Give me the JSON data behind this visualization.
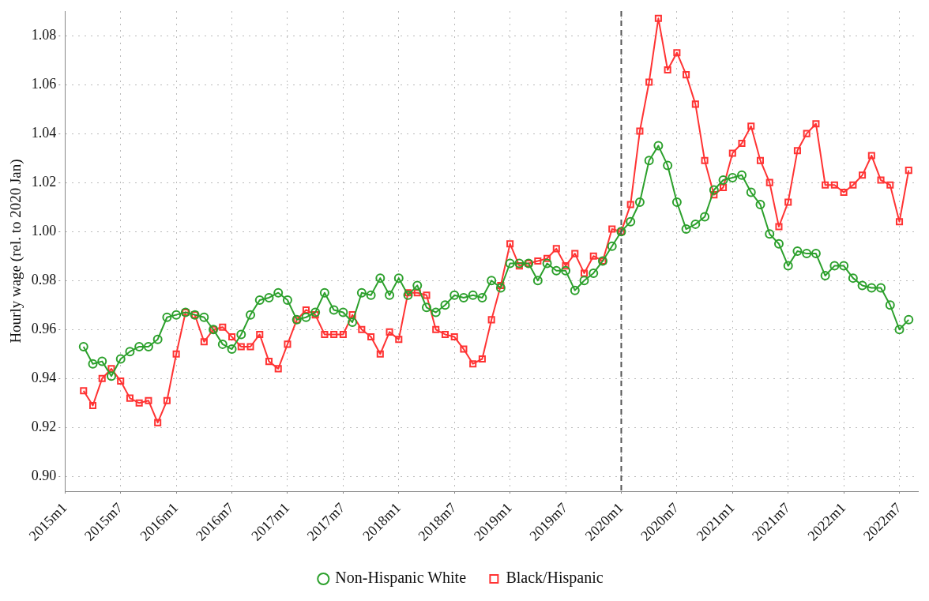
{
  "chart_data": {
    "type": "line",
    "ylabel": "Hourly wage (rel. to 2020 Jan)",
    "x": [
      "2015-03",
      "2015-04",
      "2015-05",
      "2015-06",
      "2015-07",
      "2015-08",
      "2015-09",
      "2015-10",
      "2015-11",
      "2015-12",
      "2016-01",
      "2016-02",
      "2016-03",
      "2016-04",
      "2016-05",
      "2016-06",
      "2016-07",
      "2016-08",
      "2016-09",
      "2016-10",
      "2016-11",
      "2016-12",
      "2017-01",
      "2017-02",
      "2017-03",
      "2017-04",
      "2017-05",
      "2017-06",
      "2017-07",
      "2017-08",
      "2017-09",
      "2017-10",
      "2017-11",
      "2017-12",
      "2018-01",
      "2018-02",
      "2018-03",
      "2018-04",
      "2018-05",
      "2018-06",
      "2018-07",
      "2018-08",
      "2018-09",
      "2018-10",
      "2018-11",
      "2018-12",
      "2019-01",
      "2019-02",
      "2019-03",
      "2019-04",
      "2019-05",
      "2019-06",
      "2019-07",
      "2019-08",
      "2019-09",
      "2019-10",
      "2019-11",
      "2019-12",
      "2020-01",
      "2020-02",
      "2020-03",
      "2020-04",
      "2020-05",
      "2020-06",
      "2020-07",
      "2020-08",
      "2020-09",
      "2020-10",
      "2020-11",
      "2020-12",
      "2021-01",
      "2021-02",
      "2021-03",
      "2021-04",
      "2021-05",
      "2021-06",
      "2021-07",
      "2021-08",
      "2021-09",
      "2021-10",
      "2021-11",
      "2021-12",
      "2022-01",
      "2022-02",
      "2022-03",
      "2022-04",
      "2022-05",
      "2022-06",
      "2022-07",
      "2022-08"
    ],
    "series": [
      {
        "name": "Non-Hispanic White",
        "color": "#2ca02c",
        "marker": "circle",
        "values": [
          0.953,
          0.946,
          0.947,
          0.941,
          0.948,
          0.951,
          0.953,
          0.953,
          0.956,
          0.965,
          0.966,
          0.967,
          0.966,
          0.965,
          0.96,
          0.954,
          0.952,
          0.958,
          0.966,
          0.972,
          0.973,
          0.975,
          0.972,
          0.964,
          0.965,
          0.967,
          0.975,
          0.968,
          0.967,
          0.963,
          0.975,
          0.974,
          0.981,
          0.974,
          0.981,
          0.974,
          0.978,
          0.969,
          0.967,
          0.97,
          0.974,
          0.973,
          0.974,
          0.973,
          0.98,
          0.977,
          0.987,
          0.987,
          0.987,
          0.98,
          0.987,
          0.984,
          0.984,
          0.976,
          0.98,
          0.983,
          0.988,
          0.994,
          1.0,
          1.004,
          1.012,
          1.029,
          1.035,
          1.027,
          1.012,
          1.001,
          1.003,
          1.006,
          1.017,
          1.021,
          1.022,
          1.023,
          1.016,
          1.011,
          0.999,
          0.995,
          0.986,
          0.992,
          0.991,
          0.991,
          0.982,
          0.986,
          0.986,
          0.981,
          0.978,
          0.977,
          0.977,
          0.97,
          0.96,
          0.964
        ]
      },
      {
        "name": "Black/Hispanic",
        "color": "#ff3333",
        "marker": "square",
        "values": [
          0.935,
          0.929,
          0.94,
          0.944,
          0.939,
          0.932,
          0.93,
          0.931,
          0.922,
          0.931,
          0.95,
          0.967,
          0.966,
          0.955,
          0.96,
          0.961,
          0.957,
          0.953,
          0.953,
          0.958,
          0.947,
          0.944,
          0.954,
          0.964,
          0.968,
          0.966,
          0.958,
          0.958,
          0.958,
          0.966,
          0.96,
          0.957,
          0.95,
          0.959,
          0.956,
          0.975,
          0.975,
          0.974,
          0.96,
          0.958,
          0.957,
          0.952,
          0.946,
          0.948,
          0.964,
          0.978,
          0.995,
          0.986,
          0.987,
          0.988,
          0.989,
          0.993,
          0.986,
          0.991,
          0.983,
          0.99,
          0.988,
          1.001,
          1.0,
          1.011,
          1.041,
          1.061,
          1.087,
          1.066,
          1.073,
          1.064,
          1.052,
          1.029,
          1.015,
          1.018,
          1.032,
          1.036,
          1.043,
          1.029,
          1.02,
          1.002,
          1.012,
          1.033,
          1.04,
          1.044,
          1.019,
          1.019,
          1.016,
          1.019,
          1.023,
          1.031,
          1.021,
          1.019,
          1.004,
          1.025
        ]
      }
    ],
    "xlim": [
      "2015-01",
      "2022-09"
    ],
    "xticks": [
      {
        "value": "2015-01",
        "label": "2015m1"
      },
      {
        "value": "2015-07",
        "label": "2015m7"
      },
      {
        "value": "2016-01",
        "label": "2016m1"
      },
      {
        "value": "2016-07",
        "label": "2016m7"
      },
      {
        "value": "2017-01",
        "label": "2017m1"
      },
      {
        "value": "2017-07",
        "label": "2017m7"
      },
      {
        "value": "2018-01",
        "label": "2018m1"
      },
      {
        "value": "2018-07",
        "label": "2018m7"
      },
      {
        "value": "2019-01",
        "label": "2019m1"
      },
      {
        "value": "2019-07",
        "label": "2019m7"
      },
      {
        "value": "2020-01",
        "label": "2020m1"
      },
      {
        "value": "2020-07",
        "label": "2020m7"
      },
      {
        "value": "2021-01",
        "label": "2021m1"
      },
      {
        "value": "2021-07",
        "label": "2021m7"
      },
      {
        "value": "2022-01",
        "label": "2022m1"
      },
      {
        "value": "2022-07",
        "label": "2022m7"
      }
    ],
    "ylim": [
      0.894,
      1.09
    ],
    "yticks": [
      {
        "value": 0.9,
        "label": "0.90"
      },
      {
        "value": 0.92,
        "label": "0.92"
      },
      {
        "value": 0.94,
        "label": "0.94"
      },
      {
        "value": 0.96,
        "label": "0.96"
      },
      {
        "value": 0.98,
        "label": "0.98"
      },
      {
        "value": 1.0,
        "label": "1.00"
      },
      {
        "value": 1.02,
        "label": "1.02"
      },
      {
        "value": 1.04,
        "label": "1.04"
      },
      {
        "value": 1.06,
        "label": "1.06"
      },
      {
        "value": 1.08,
        "label": "1.08"
      }
    ],
    "ref_lines": [
      {
        "axis": "x",
        "value": "2020-01",
        "color": "#555555",
        "line_style": "dashed"
      }
    ],
    "grid": true,
    "legend": "bottom",
    "line_style": "solid"
  }
}
